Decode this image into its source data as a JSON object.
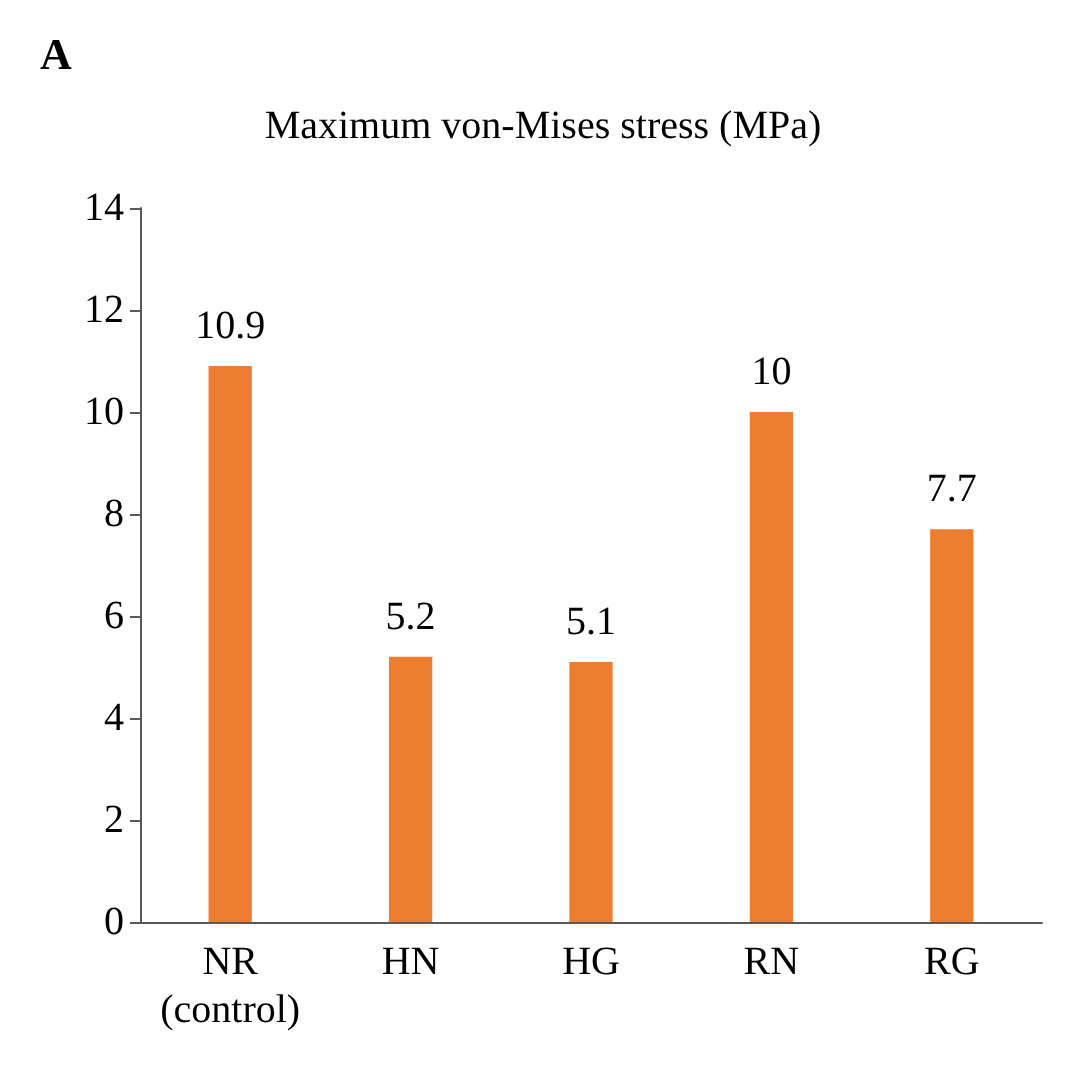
{
  "chart_data": {
    "type": "bar",
    "title": "Maximum von-Mises stress (MPa)",
    "annotations": [
      "A"
    ],
    "categories": [
      "NR\n(control)",
      "HN",
      "HG",
      "RN",
      "RG"
    ],
    "values": [
      10.9,
      5.2,
      5.1,
      10,
      7.7
    ],
    "color": "#ed7d31",
    "ylim": [
      0,
      14
    ],
    "yticks": [
      0,
      2,
      4,
      6,
      8,
      10,
      12,
      14
    ],
    "grid": false,
    "data_labels": true
  }
}
